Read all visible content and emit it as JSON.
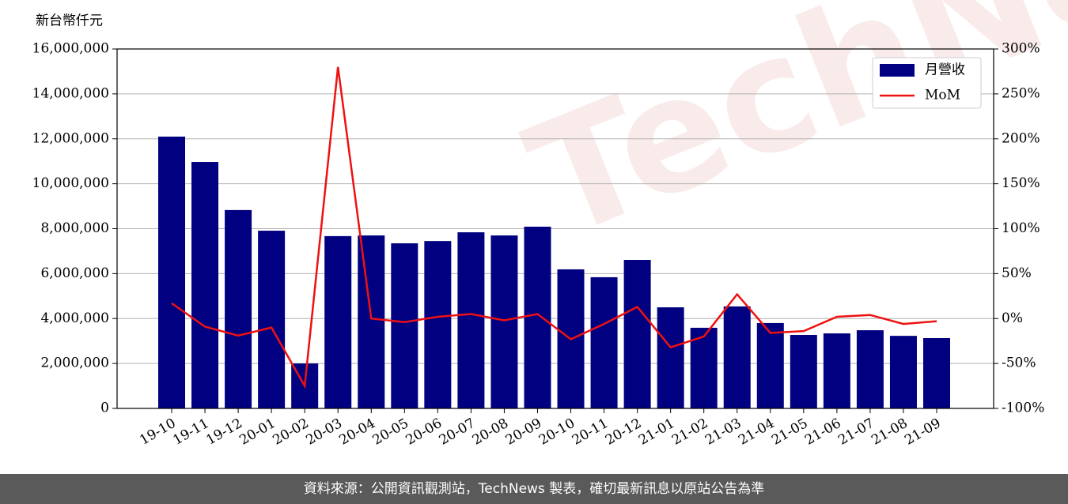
{
  "chart_data": {
    "type": "bar",
    "y_label": "新台幣仟元",
    "watermark": "TechNews",
    "categories": [
      "19-10",
      "19-11",
      "19-12",
      "20-01",
      "20-02",
      "20-03",
      "20-04",
      "20-05",
      "20-06",
      "20-07",
      "20-08",
      "20-09",
      "20-10",
      "20-11",
      "20-12",
      "21-01",
      "21-02",
      "21-03",
      "21-04",
      "21-05",
      "21-06",
      "21-07",
      "21-08",
      "21-09"
    ],
    "series": [
      {
        "name": "月營收",
        "type": "bar",
        "color": "#000080",
        "values": [
          12100000,
          10970000,
          8830000,
          7910000,
          2000000,
          7670000,
          7700000,
          7350000,
          7450000,
          7840000,
          7700000,
          8090000,
          6190000,
          5840000,
          6610000,
          4500000,
          3590000,
          4540000,
          3800000,
          3270000,
          3340000,
          3480000,
          3230000,
          3130000
        ]
      },
      {
        "name": "MoM",
        "type": "line",
        "color": "#ee1111",
        "axis": "y2",
        "values": [
          17,
          -9,
          -19,
          -10,
          -75,
          280,
          0,
          -4,
          2,
          5,
          -2,
          5,
          -23,
          -6,
          13,
          -32,
          -20,
          27,
          -16,
          -14,
          2,
          4,
          -6,
          -3
        ]
      }
    ],
    "ylim": [
      0,
      16000000
    ],
    "yticks": [
      0,
      {
        "value": 2000000,
        "label": "2,000,000"
      },
      {
        "value": 4000000,
        "label": "4,000,000"
      },
      {
        "value": 6000000,
        "label": "6,000,000"
      },
      {
        "value": 8000000,
        "label": "8,000,000"
      },
      {
        "value": 10000000,
        "label": "10,000,000"
      },
      {
        "value": 12000000,
        "label": "12,000,000"
      },
      {
        "value": 14000000,
        "label": "14,000,000"
      },
      {
        "value": 16000000,
        "label": "16,000,000"
      }
    ],
    "y2lim": [
      -100,
      300
    ],
    "y2ticks": [
      {
        "value": -100,
        "label": "-100%"
      },
      {
        "value": -50,
        "label": "-50%"
      },
      {
        "value": 0,
        "label": "0%"
      },
      {
        "value": 50,
        "label": "50%"
      },
      {
        "value": 100,
        "label": "100%"
      },
      {
        "value": 150,
        "label": "150%"
      },
      {
        "value": 200,
        "label": "200%"
      },
      {
        "value": 250,
        "label": "250%"
      },
      {
        "value": 300,
        "label": "300%"
      }
    ],
    "grid": true,
    "legend": "upper right"
  },
  "footer": "資料來源：公開資訊觀測站，TechNews 製表，確切最新訊息以原站公告為準"
}
